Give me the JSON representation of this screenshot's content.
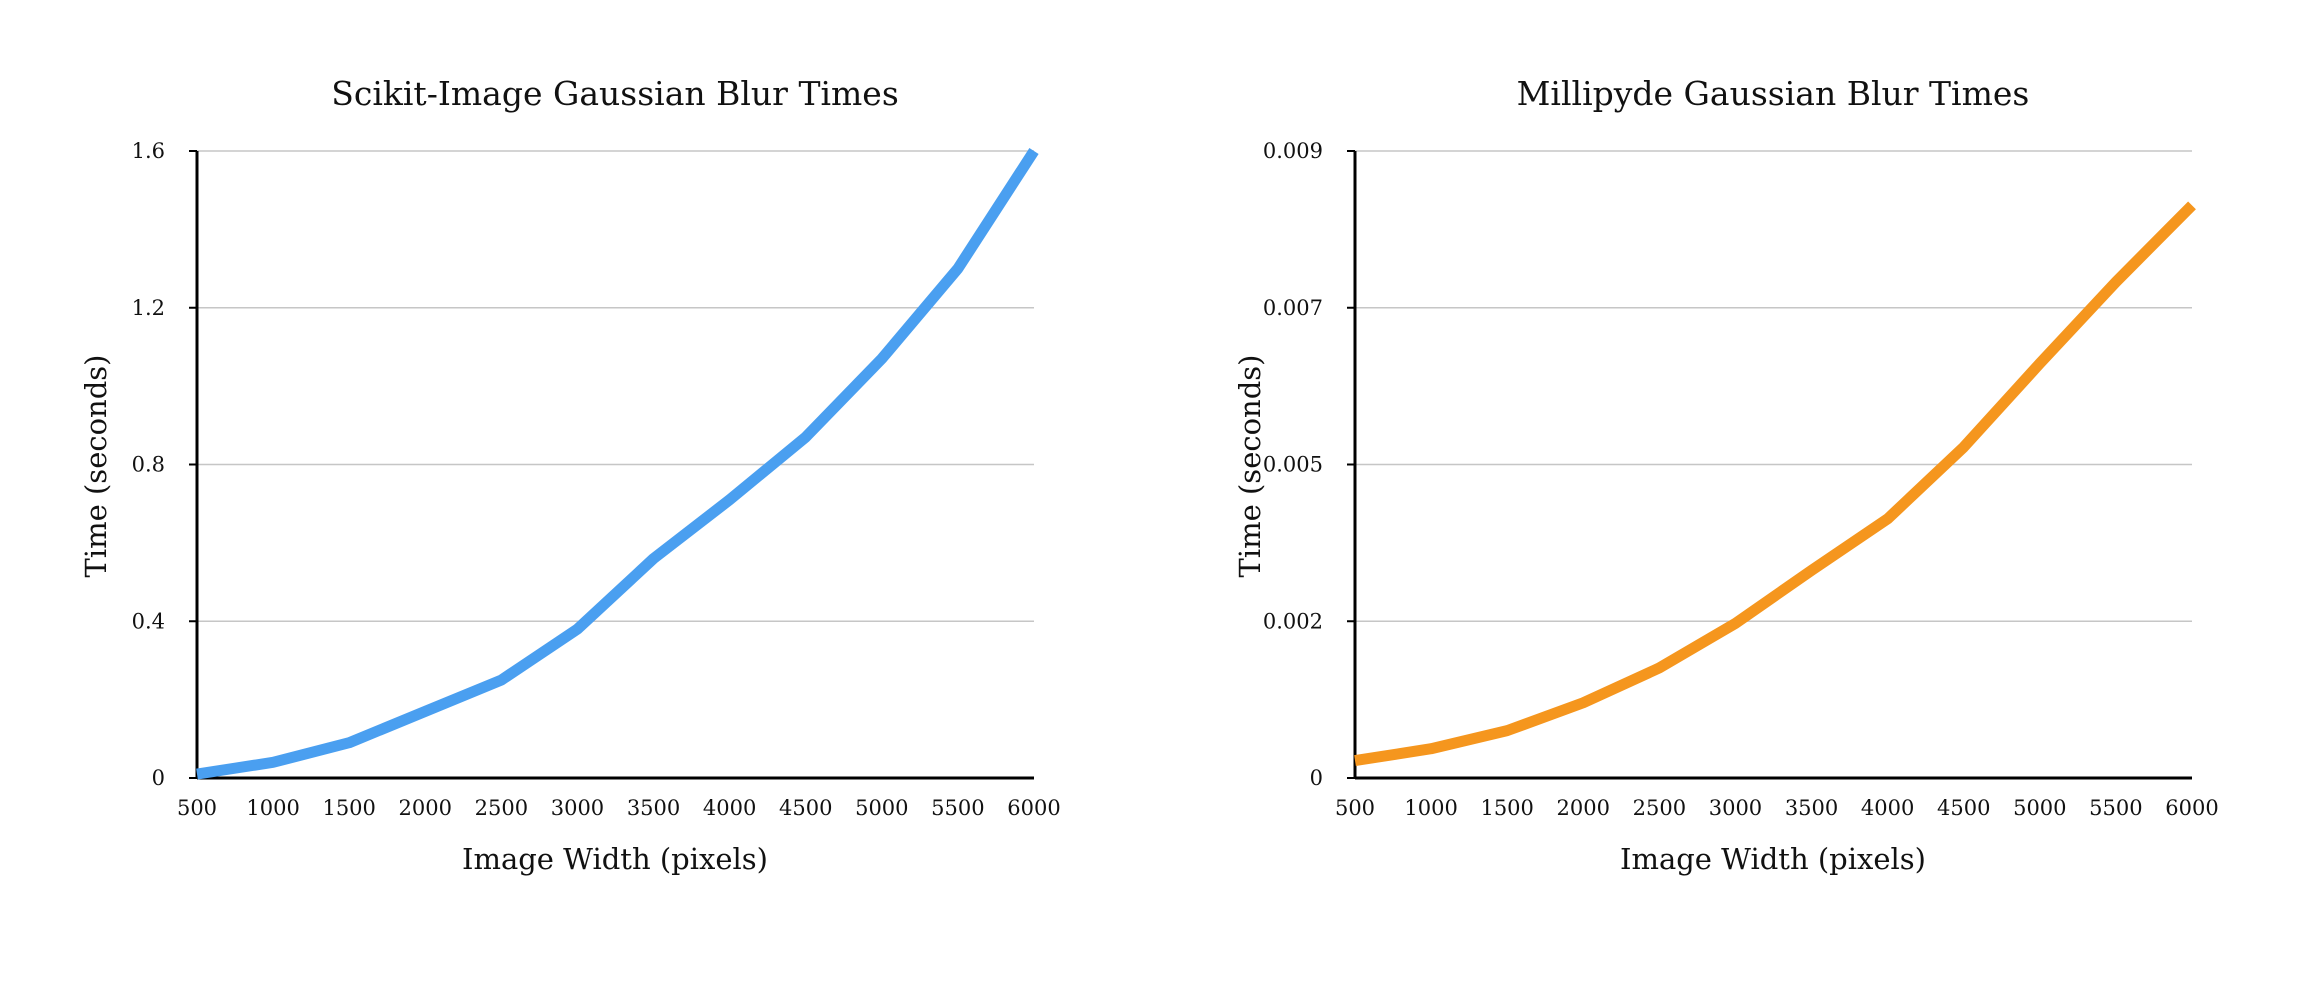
{
  "chart_data": [
    {
      "type": "line",
      "title": "Scikit-Image Gaussian Blur Times",
      "xlabel": "Image Width (pixels)",
      "ylabel": "Time (seconds)",
      "x": [
        500,
        1000,
        1500,
        2000,
        2500,
        3000,
        3500,
        4000,
        4500,
        5000,
        5500,
        6000
      ],
      "x_tick_labels": [
        "500",
        "1000",
        "1500",
        "2000",
        "2500",
        "3000",
        "3500",
        "4000",
        "4500",
        "5000",
        "5500",
        "6000"
      ],
      "xlim": [
        500,
        6000
      ],
      "ylim": [
        0,
        1.6
      ],
      "y_ticks": [
        0,
        0.4,
        0.8,
        1.2,
        1.6
      ],
      "y_tick_labels": [
        "0",
        "0.4",
        "0.8",
        "1.2",
        "1.6"
      ],
      "grid": true,
      "series": [
        {
          "color": "#4a9ff0",
          "values": [
            0.01,
            0.04,
            0.09,
            0.17,
            0.25,
            0.38,
            0.56,
            0.71,
            0.87,
            1.07,
            1.3,
            1.6
          ]
        }
      ]
    },
    {
      "type": "line",
      "title": "Millipyde Gaussian Blur Times",
      "xlabel": "Image Width (pixels)",
      "ylabel": "Time (seconds)",
      "x": [
        500,
        1000,
        1500,
        2000,
        2500,
        3000,
        3500,
        4000,
        4500,
        5000,
        5500,
        6000
      ],
      "x_tick_labels": [
        "500",
        "1000",
        "1500",
        "2000",
        "2500",
        "3000",
        "3500",
        "4000",
        "4500",
        "5000",
        "5500",
        "6000"
      ],
      "xlim": [
        500,
        6000
      ],
      "ylim": [
        0,
        0.009
      ],
      "y_ticks": [
        0,
        0.00225,
        0.0045,
        0.00675,
        0.009
      ],
      "y_tick_labels": [
        "0",
        "0.002",
        "0.005",
        "0.007",
        "0.009"
      ],
      "grid": true,
      "series": [
        {
          "color": "#f5961e",
          "values": [
            0.00025,
            0.00042,
            0.00068,
            0.00108,
            0.00158,
            0.00222,
            0.00298,
            0.00372,
            0.00475,
            0.00595,
            0.00712,
            0.00822
          ]
        }
      ]
    }
  ]
}
